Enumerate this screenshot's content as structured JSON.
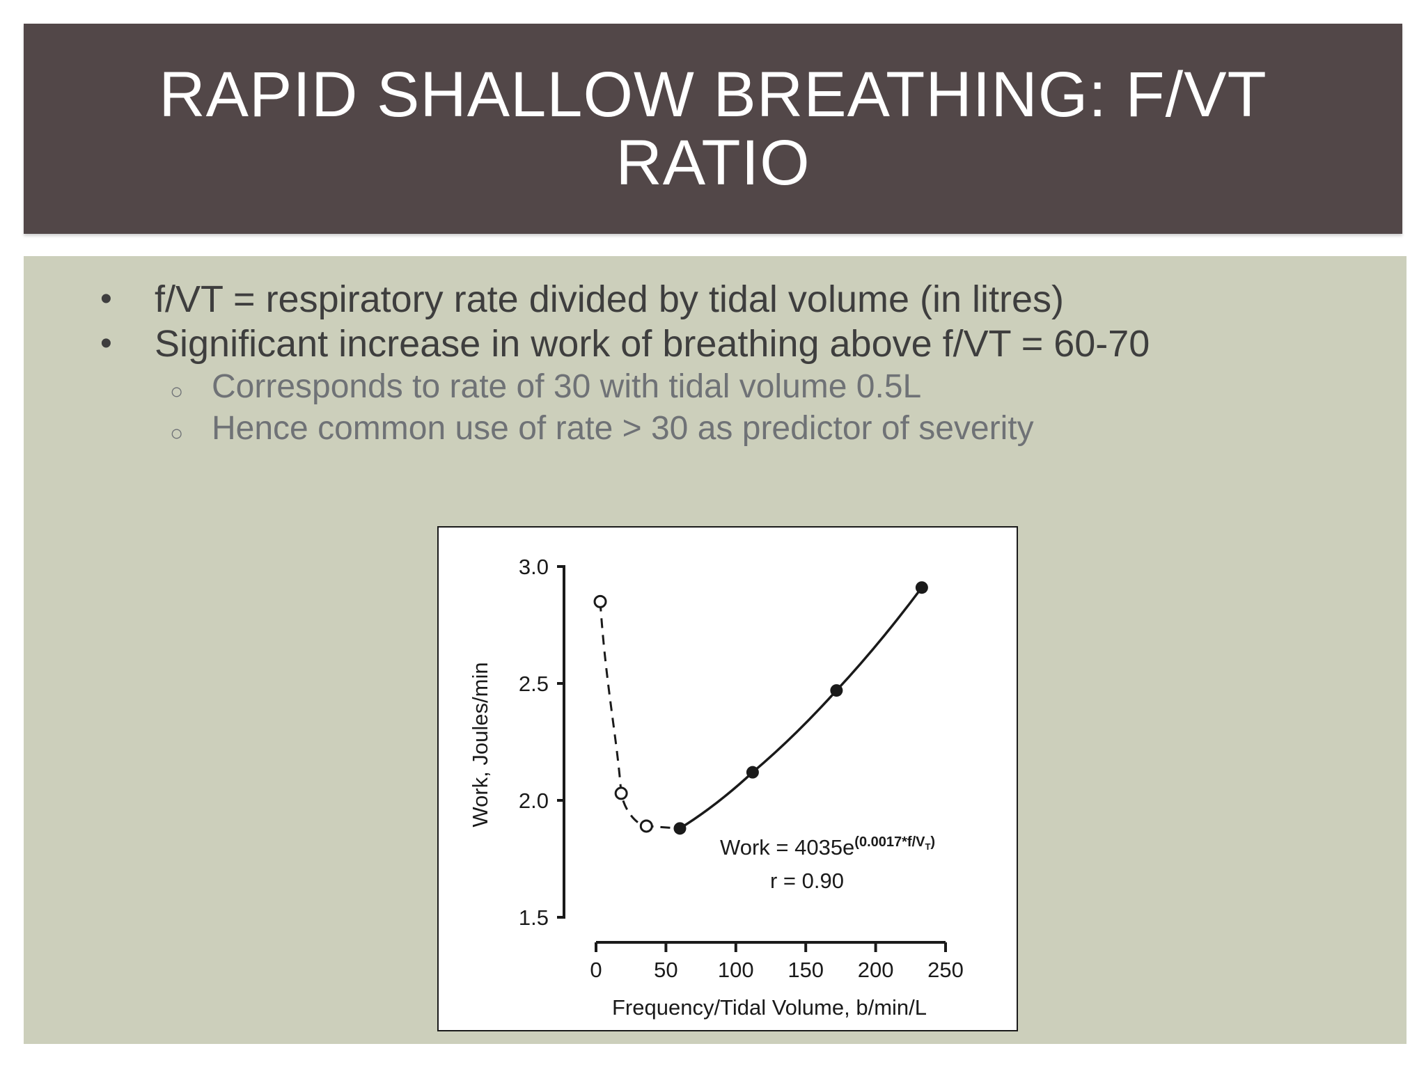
{
  "slide": {
    "title": "RAPID SHALLOW BREATHING: F/VT RATIO",
    "bullets": [
      "f/VT = respiratory rate divided by tidal volume (in litres)",
      "Significant increase in work of breathing above f/VT = 60-70"
    ],
    "sub_bullets": [
      "Corresponds to rate of 30 with tidal volume 0.5L",
      "Hence common use of rate > 30 as predictor of severity"
    ],
    "colors": {
      "title_bar": "#524748",
      "content_bg": "#cccfbb",
      "bullet_text": "#3e3e3e",
      "sub_bullet_text": "#6f7276"
    }
  },
  "chart_data": {
    "type": "line",
    "title": "",
    "xlabel": "Frequency/Tidal Volume, b/min/L",
    "ylabel": "Work, Joules/min",
    "xlim": [
      0,
      250
    ],
    "ylim": [
      1.5,
      3.0
    ],
    "x_ticks": [
      "0",
      "50",
      "100",
      "150",
      "200",
      "250"
    ],
    "y_ticks": [
      "1.5",
      "2.0",
      "2.5",
      "3.0"
    ],
    "grid": false,
    "series": [
      {
        "style": "dashed, open circles",
        "x": [
          3,
          18,
          36,
          60
        ],
        "y": [
          2.85,
          2.03,
          1.89,
          1.88
        ]
      },
      {
        "style": "solid, filled circles",
        "x": [
          60,
          112,
          172,
          233
        ],
        "y": [
          1.88,
          2.12,
          2.47,
          2.91
        ]
      }
    ],
    "annotation": {
      "equation_prefix": "Work = 4035e",
      "equation_exponent": "(0.0017*f/V",
      "equation_exponent_sub": "T",
      "equation_exponent_close": ")",
      "r_value": "r = 0.90"
    }
  }
}
